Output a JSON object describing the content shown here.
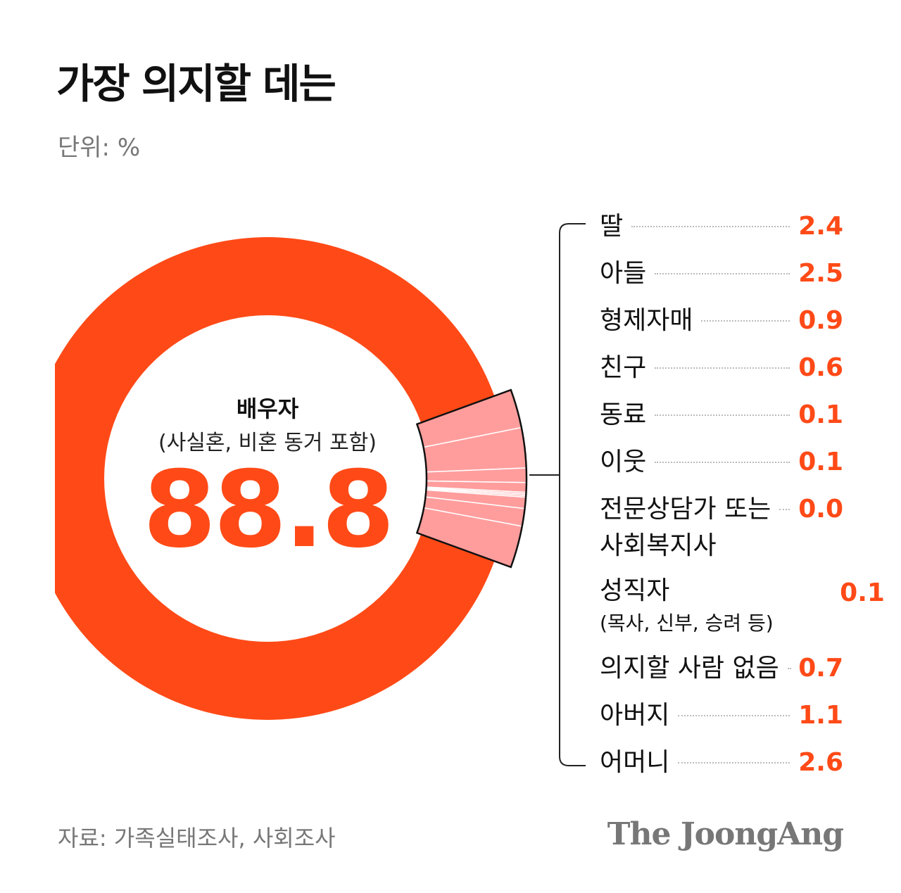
{
  "title": "가장 의지할 데는",
  "unit": "단위: %",
  "source": "자료: 가족실태조사, 사회조사",
  "logo": "The JoongAng",
  "chart_data": {
    "type": "donut",
    "center_label": "배우자",
    "center_note": "(사실혼, 비혼 동거 포함)",
    "center_value": 88.8,
    "center_color": "#ff4a17",
    "color": "#ff9d9d",
    "categories": [
      "딸",
      "아들",
      "형제자매",
      "친구",
      "동료",
      "이웃",
      "전문상담가 또는\n사회복지사",
      "성직자\n(목사, 신부, 승려 등)",
      "의지할 사람 없음",
      "아버지",
      "어머니"
    ],
    "values": [
      2.4,
      2.5,
      0.9,
      0.6,
      0.1,
      0.1,
      0.0,
      0.1,
      0.7,
      1.1,
      2.6
    ],
    "value_labels": [
      "2.4",
      "2.5",
      "0.9",
      "0.6",
      "0.1",
      "0.1",
      "0.0",
      "0.1",
      "0.7",
      "1.1",
      "2.6"
    ]
  }
}
